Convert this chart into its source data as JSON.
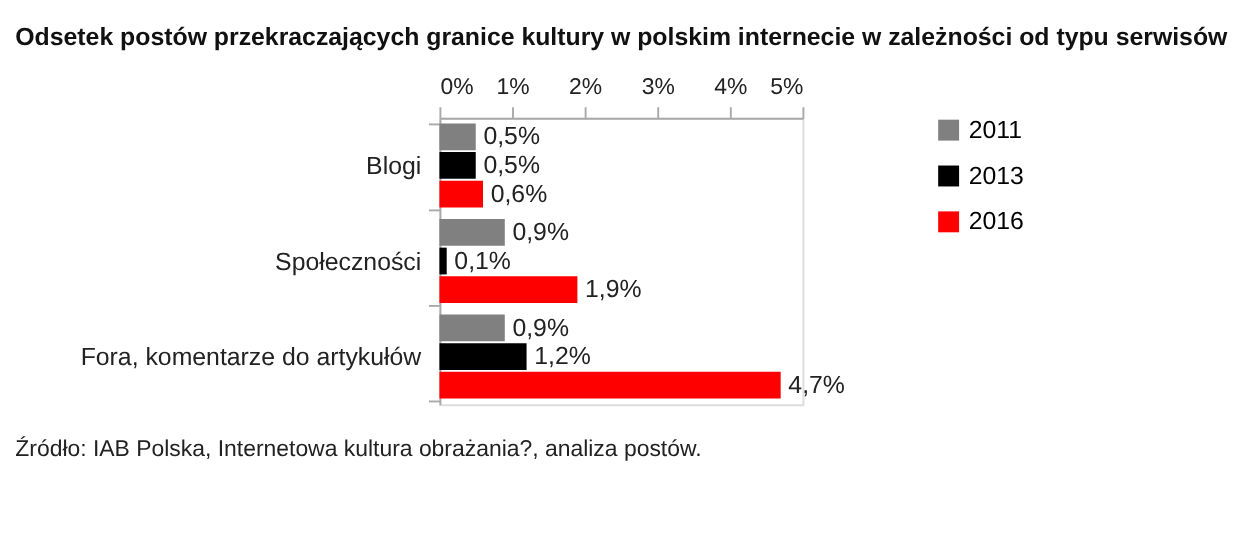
{
  "chart_data": {
    "type": "bar",
    "orientation": "horizontal",
    "title": "Odsetek postów przekraczających granice kultury w polskim internecie w zależności od typu serwisów",
    "categories": [
      "Blogi",
      "Społeczności",
      "Fora, komentarze do artykułów"
    ],
    "series": [
      {
        "name": "2011",
        "color": "#808080",
        "values": [
          0.5,
          0.9,
          0.9
        ],
        "value_labels": [
          "0,5%",
          "0,9%",
          "0,9%"
        ]
      },
      {
        "name": "2013",
        "color": "#000000",
        "values": [
          0.5,
          0.1,
          1.2
        ],
        "value_labels": [
          "0,5%",
          "0,1%",
          "1,2%"
        ]
      },
      {
        "name": "2016",
        "color": "#ff0000",
        "values": [
          0.6,
          1.9,
          4.7
        ],
        "value_labels": [
          "0,6%",
          "1,9%",
          "4,7%"
        ]
      }
    ],
    "xlim": [
      0,
      5
    ],
    "xticks": [
      {
        "value": 0,
        "label": "0%"
      },
      {
        "value": 1,
        "label": "1%"
      },
      {
        "value": 2,
        "label": "2%"
      },
      {
        "value": 3,
        "label": "3%"
      },
      {
        "value": 4,
        "label": "4%"
      },
      {
        "value": 5,
        "label": "5%"
      }
    ],
    "legend": "right",
    "grid": false,
    "annotations": [
      "Źródło: IAB Polska, Internetowa kultura obrażania?, analiza postów."
    ]
  }
}
